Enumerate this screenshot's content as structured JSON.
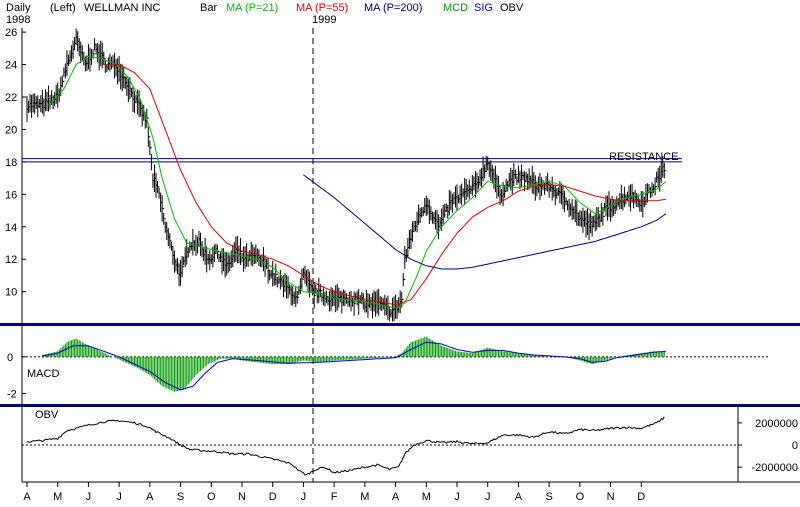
{
  "header": {
    "period": "Daily",
    "year_start": "1998",
    "scale": "(Left)",
    "symbol": "WELLMAN INC",
    "chart_style": "Bar",
    "ma_short": "MA (P=21)",
    "ma_mid": "MA (P=55)",
    "ma_long": "MA (P=200)",
    "year_divider": "1999",
    "mcd": "MCD",
    "sig": "SIG",
    "obv": "OBV"
  },
  "colors": {
    "price_bars": "#000000",
    "ma21": "#00bb00",
    "ma55": "#dd0000",
    "ma200": "#000080",
    "resistance": "#000080",
    "macd_hist": "#009900",
    "macd_signal": "#0000cc",
    "obv_line": "#000000",
    "panel_divider": "#000080"
  },
  "chart_data": [
    {
      "type": "bar",
      "title": "WELLMAN INC",
      "xlabel": "",
      "ylabel": "",
      "ylim": [
        8.5,
        26.5
      ],
      "yticks": [
        "26",
        "24",
        "22",
        "20",
        "18",
        "16",
        "14",
        "12",
        "10"
      ],
      "x_months": [
        "A",
        "M",
        "J",
        "J",
        "A",
        "S",
        "O",
        "N",
        "D",
        "J",
        "F",
        "M",
        "A",
        "M",
        "J",
        "J",
        "A",
        "S",
        "O",
        "N",
        "D"
      ],
      "resistance": {
        "label": "RESISTANCE",
        "levels": [
          18.0,
          18.2
        ]
      },
      "close_anchors": [
        [
          0,
          21.5
        ],
        [
          0.5,
          21.5
        ],
        [
          1,
          22.0
        ],
        [
          1.3,
          24.0
        ],
        [
          1.6,
          25.5
        ],
        [
          1.9,
          24.0
        ],
        [
          2.2,
          25.0
        ],
        [
          2.6,
          24.0
        ],
        [
          2.9,
          24.0
        ],
        [
          3.2,
          23.0
        ],
        [
          3.6,
          21.5
        ],
        [
          3.9,
          20.5
        ],
        [
          4.1,
          17.0
        ],
        [
          4.3,
          16.0
        ],
        [
          4.5,
          14.0
        ],
        [
          4.8,
          12.0
        ],
        [
          5.0,
          11.0
        ],
        [
          5.3,
          13.0
        ],
        [
          5.6,
          13.0
        ],
        [
          5.9,
          12.0
        ],
        [
          6.2,
          12.5
        ],
        [
          6.5,
          11.5
        ],
        [
          6.8,
          12.5
        ],
        [
          7.1,
          12.0
        ],
        [
          7.4,
          12.2
        ],
        [
          7.7,
          11.8
        ],
        [
          8.0,
          11.0
        ],
        [
          8.3,
          10.5
        ],
        [
          8.6,
          10.0
        ],
        [
          8.8,
          9.5
        ],
        [
          9.0,
          11.0
        ],
        [
          9.3,
          10.0
        ],
        [
          9.6,
          9.8
        ],
        [
          10.0,
          9.5
        ],
        [
          10.5,
          9.6
        ],
        [
          11.0,
          9.3
        ],
        [
          11.5,
          9.2
        ],
        [
          11.8,
          8.8
        ],
        [
          12.0,
          8.9
        ],
        [
          12.2,
          9.5
        ],
        [
          12.3,
          12.0
        ],
        [
          12.6,
          14.0
        ],
        [
          13.0,
          15.5
        ],
        [
          13.4,
          14.0
        ],
        [
          13.8,
          15.5
        ],
        [
          14.2,
          16.0
        ],
        [
          14.6,
          16.5
        ],
        [
          15.0,
          18.0
        ],
        [
          15.4,
          16.0
        ],
        [
          15.8,
          17.0
        ],
        [
          16.2,
          17.0
        ],
        [
          16.6,
          16.5
        ],
        [
          17.0,
          16.5
        ],
        [
          17.3,
          16.0
        ],
        [
          17.6,
          15.5
        ],
        [
          18.0,
          14.5
        ],
        [
          18.4,
          14.0
        ],
        [
          18.8,
          15.0
        ],
        [
          19.2,
          15.5
        ],
        [
          19.6,
          16.0
        ],
        [
          20.0,
          15.5
        ],
        [
          20.4,
          16.5
        ],
        [
          20.8,
          17.8
        ]
      ],
      "ma21_anchors": [
        [
          0.7,
          21.5
        ],
        [
          1.2,
          22.5
        ],
        [
          1.6,
          24.0
        ],
        [
          2.0,
          24.5
        ],
        [
          2.4,
          24.4
        ],
        [
          2.9,
          24.0
        ],
        [
          3.3,
          23.2
        ],
        [
          3.7,
          21.8
        ],
        [
          4.1,
          19.5
        ],
        [
          4.4,
          17.0
        ],
        [
          4.8,
          14.5
        ],
        [
          5.2,
          13.0
        ],
        [
          5.6,
          12.8
        ],
        [
          6.0,
          12.6
        ],
        [
          6.5,
          12.4
        ],
        [
          7.0,
          12.2
        ],
        [
          7.5,
          12.0
        ],
        [
          8.0,
          11.5
        ],
        [
          8.5,
          10.6
        ],
        [
          9.0,
          10.0
        ],
        [
          9.5,
          9.9
        ],
        [
          10.0,
          9.6
        ],
        [
          11.0,
          9.4
        ],
        [
          12.0,
          9.0
        ],
        [
          12.3,
          9.3
        ],
        [
          12.7,
          11.0
        ],
        [
          13.0,
          12.5
        ],
        [
          13.5,
          14.0
        ],
        [
          14.0,
          15.0
        ],
        [
          14.5,
          15.8
        ],
        [
          15.0,
          16.8
        ],
        [
          15.5,
          16.5
        ],
        [
          16.0,
          16.4
        ],
        [
          16.5,
          16.6
        ],
        [
          17.0,
          16.8
        ],
        [
          17.5,
          16.5
        ],
        [
          18.0,
          15.5
        ],
        [
          18.5,
          14.8
        ],
        [
          19.0,
          15.3
        ],
        [
          19.5,
          15.8
        ],
        [
          20.0,
          16.0
        ],
        [
          20.5,
          16.3
        ],
        [
          20.8,
          16.8
        ]
      ],
      "ma55_anchors": [
        [
          2.5,
          24.0
        ],
        [
          3.0,
          24.0
        ],
        [
          3.5,
          23.5
        ],
        [
          4.0,
          22.5
        ],
        [
          4.5,
          20.0
        ],
        [
          5.0,
          17.5
        ],
        [
          5.5,
          15.5
        ],
        [
          6.0,
          14.0
        ],
        [
          6.5,
          13.0
        ],
        [
          7.0,
          12.5
        ],
        [
          7.5,
          12.3
        ],
        [
          8.0,
          12.0
        ],
        [
          8.5,
          11.6
        ],
        [
          9.0,
          11.0
        ],
        [
          9.5,
          10.4
        ],
        [
          10.0,
          10.0
        ],
        [
          11.0,
          9.5
        ],
        [
          12.0,
          9.2
        ],
        [
          12.5,
          9.5
        ],
        [
          13.0,
          10.8
        ],
        [
          13.5,
          12.3
        ],
        [
          14.0,
          13.6
        ],
        [
          14.5,
          14.6
        ],
        [
          15.0,
          15.2
        ],
        [
          15.5,
          15.6
        ],
        [
          16.0,
          16.2
        ],
        [
          16.5,
          16.5
        ],
        [
          17.0,
          16.6
        ],
        [
          17.5,
          16.5
        ],
        [
          18.0,
          16.2
        ],
        [
          18.5,
          15.9
        ],
        [
          19.0,
          15.7
        ],
        [
          19.5,
          15.6
        ],
        [
          20.0,
          15.6
        ],
        [
          20.5,
          15.6
        ],
        [
          20.8,
          15.7
        ]
      ],
      "ma200_anchors": [
        [
          9.0,
          17.2
        ],
        [
          9.5,
          16.5
        ],
        [
          10.0,
          15.8
        ],
        [
          10.5,
          15.0
        ],
        [
          11.0,
          14.2
        ],
        [
          11.5,
          13.4
        ],
        [
          12.0,
          12.6
        ],
        [
          12.5,
          12.0
        ],
        [
          13.0,
          11.6
        ],
        [
          13.5,
          11.4
        ],
        [
          14.0,
          11.4
        ],
        [
          14.5,
          11.5
        ],
        [
          15.0,
          11.7
        ],
        [
          15.5,
          11.9
        ],
        [
          16.0,
          12.1
        ],
        [
          16.5,
          12.3
        ],
        [
          17.0,
          12.5
        ],
        [
          17.5,
          12.7
        ],
        [
          18.0,
          12.9
        ],
        [
          18.5,
          13.1
        ],
        [
          19.0,
          13.4
        ],
        [
          19.5,
          13.7
        ],
        [
          20.0,
          14.0
        ],
        [
          20.5,
          14.4
        ],
        [
          20.8,
          14.8
        ]
      ]
    },
    {
      "type": "bar",
      "title": "MACD",
      "xlabel": "",
      "ylabel": "",
      "ylim": [
        -2.3,
        1.3
      ],
      "yticks": [
        "0",
        "-2"
      ],
      "hist_anchors": [
        [
          0.5,
          0.1
        ],
        [
          1.0,
          0.3
        ],
        [
          1.3,
          0.8
        ],
        [
          1.6,
          1.0
        ],
        [
          2.0,
          0.6
        ],
        [
          2.4,
          0.3
        ],
        [
          2.8,
          0.0
        ],
        [
          3.2,
          -0.3
        ],
        [
          3.6,
          -0.6
        ],
        [
          4.0,
          -1.0
        ],
        [
          4.4,
          -1.6
        ],
        [
          4.8,
          -1.9
        ],
        [
          5.1,
          -1.8
        ],
        [
          5.5,
          -1.0
        ],
        [
          5.9,
          -0.4
        ],
        [
          6.3,
          -0.1
        ],
        [
          6.7,
          -0.1
        ],
        [
          7.0,
          -0.2
        ],
        [
          7.5,
          -0.3
        ],
        [
          8.0,
          -0.4
        ],
        [
          8.5,
          -0.4
        ],
        [
          9.0,
          -0.2
        ],
        [
          9.5,
          -0.3
        ],
        [
          10.0,
          -0.2
        ],
        [
          11.0,
          -0.1
        ],
        [
          12.0,
          0.0
        ],
        [
          12.2,
          0.2
        ],
        [
          12.5,
          0.8
        ],
        [
          13.0,
          1.1
        ],
        [
          13.5,
          0.6
        ],
        [
          14.0,
          0.3
        ],
        [
          14.5,
          0.2
        ],
        [
          15.0,
          0.5
        ],
        [
          15.5,
          0.3
        ],
        [
          16.0,
          0.2
        ],
        [
          16.5,
          0.1
        ],
        [
          17.0,
          0.0
        ],
        [
          17.5,
          0.0
        ],
        [
          18.0,
          -0.2
        ],
        [
          18.4,
          -0.4
        ],
        [
          18.8,
          -0.2
        ],
        [
          19.2,
          0.0
        ],
        [
          19.6,
          0.1
        ],
        [
          20.0,
          0.2
        ],
        [
          20.4,
          0.3
        ],
        [
          20.8,
          0.3
        ]
      ],
      "signal_anchors": [
        [
          0.5,
          0.05
        ],
        [
          1.0,
          0.2
        ],
        [
          1.5,
          0.6
        ],
        [
          2.0,
          0.6
        ],
        [
          2.5,
          0.3
        ],
        [
          3.0,
          0.0
        ],
        [
          3.5,
          -0.4
        ],
        [
          4.0,
          -0.8
        ],
        [
          4.5,
          -1.4
        ],
        [
          5.0,
          -1.8
        ],
        [
          5.4,
          -1.6
        ],
        [
          5.8,
          -0.9
        ],
        [
          6.2,
          -0.3
        ],
        [
          6.7,
          -0.1
        ],
        [
          7.5,
          -0.2
        ],
        [
          8.5,
          -0.35
        ],
        [
          9.5,
          -0.3
        ],
        [
          10.5,
          -0.2
        ],
        [
          11.5,
          -0.1
        ],
        [
          12.0,
          -0.05
        ],
        [
          12.5,
          0.4
        ],
        [
          13.0,
          0.8
        ],
        [
          13.5,
          0.7
        ],
        [
          14.0,
          0.4
        ],
        [
          14.5,
          0.25
        ],
        [
          15.0,
          0.35
        ],
        [
          15.5,
          0.35
        ],
        [
          16.0,
          0.2
        ],
        [
          16.5,
          0.1
        ],
        [
          17.0,
          0.05
        ],
        [
          17.5,
          0.0
        ],
        [
          18.0,
          -0.1
        ],
        [
          18.4,
          -0.3
        ],
        [
          18.8,
          -0.25
        ],
        [
          19.2,
          -0.05
        ],
        [
          19.6,
          0.05
        ],
        [
          20.0,
          0.15
        ],
        [
          20.4,
          0.25
        ],
        [
          20.8,
          0.3
        ]
      ]
    },
    {
      "type": "line",
      "title": "OBV",
      "xlabel": "",
      "ylabel": "",
      "ylim": [
        -2800000,
        2800000
      ],
      "yticks": [
        "2000000",
        "0",
        "-2000000"
      ],
      "obv_anchors": [
        [
          0,
          300000
        ],
        [
          0.5,
          400000
        ],
        [
          1.0,
          600000
        ],
        [
          1.3,
          1300000
        ],
        [
          1.6,
          1500000
        ],
        [
          2.0,
          1800000
        ],
        [
          2.5,
          2100000
        ],
        [
          3.0,
          2200000
        ],
        [
          3.5,
          2000000
        ],
        [
          3.9,
          1700000
        ],
        [
          4.2,
          1200000
        ],
        [
          4.6,
          700000
        ],
        [
          5.0,
          0
        ],
        [
          5.3,
          -400000
        ],
        [
          5.7,
          -500000
        ],
        [
          6.2,
          -600000
        ],
        [
          6.7,
          -800000
        ],
        [
          7.2,
          -800000
        ],
        [
          7.7,
          -1100000
        ],
        [
          8.2,
          -1400000
        ],
        [
          8.6,
          -1700000
        ],
        [
          8.9,
          -2400000
        ],
        [
          9.1,
          -2700000
        ],
        [
          9.4,
          -2200000
        ],
        [
          9.7,
          -2000000
        ],
        [
          10.0,
          -2500000
        ],
        [
          10.5,
          -2300000
        ],
        [
          11.0,
          -2000000
        ],
        [
          11.4,
          -1800000
        ],
        [
          11.8,
          -2200000
        ],
        [
          12.1,
          -2000000
        ],
        [
          12.3,
          -800000
        ],
        [
          12.6,
          0
        ],
        [
          13.0,
          400000
        ],
        [
          13.5,
          200000
        ],
        [
          14.0,
          300000
        ],
        [
          14.5,
          100000
        ],
        [
          15.0,
          200000
        ],
        [
          15.5,
          900000
        ],
        [
          16.0,
          900000
        ],
        [
          16.5,
          700000
        ],
        [
          17.0,
          1200000
        ],
        [
          17.5,
          1000000
        ],
        [
          18.0,
          1400000
        ],
        [
          18.5,
          1300000
        ],
        [
          19.0,
          1500000
        ],
        [
          19.5,
          1600000
        ],
        [
          20.0,
          1500000
        ],
        [
          20.5,
          2000000
        ],
        [
          20.8,
          2600000
        ]
      ]
    }
  ]
}
